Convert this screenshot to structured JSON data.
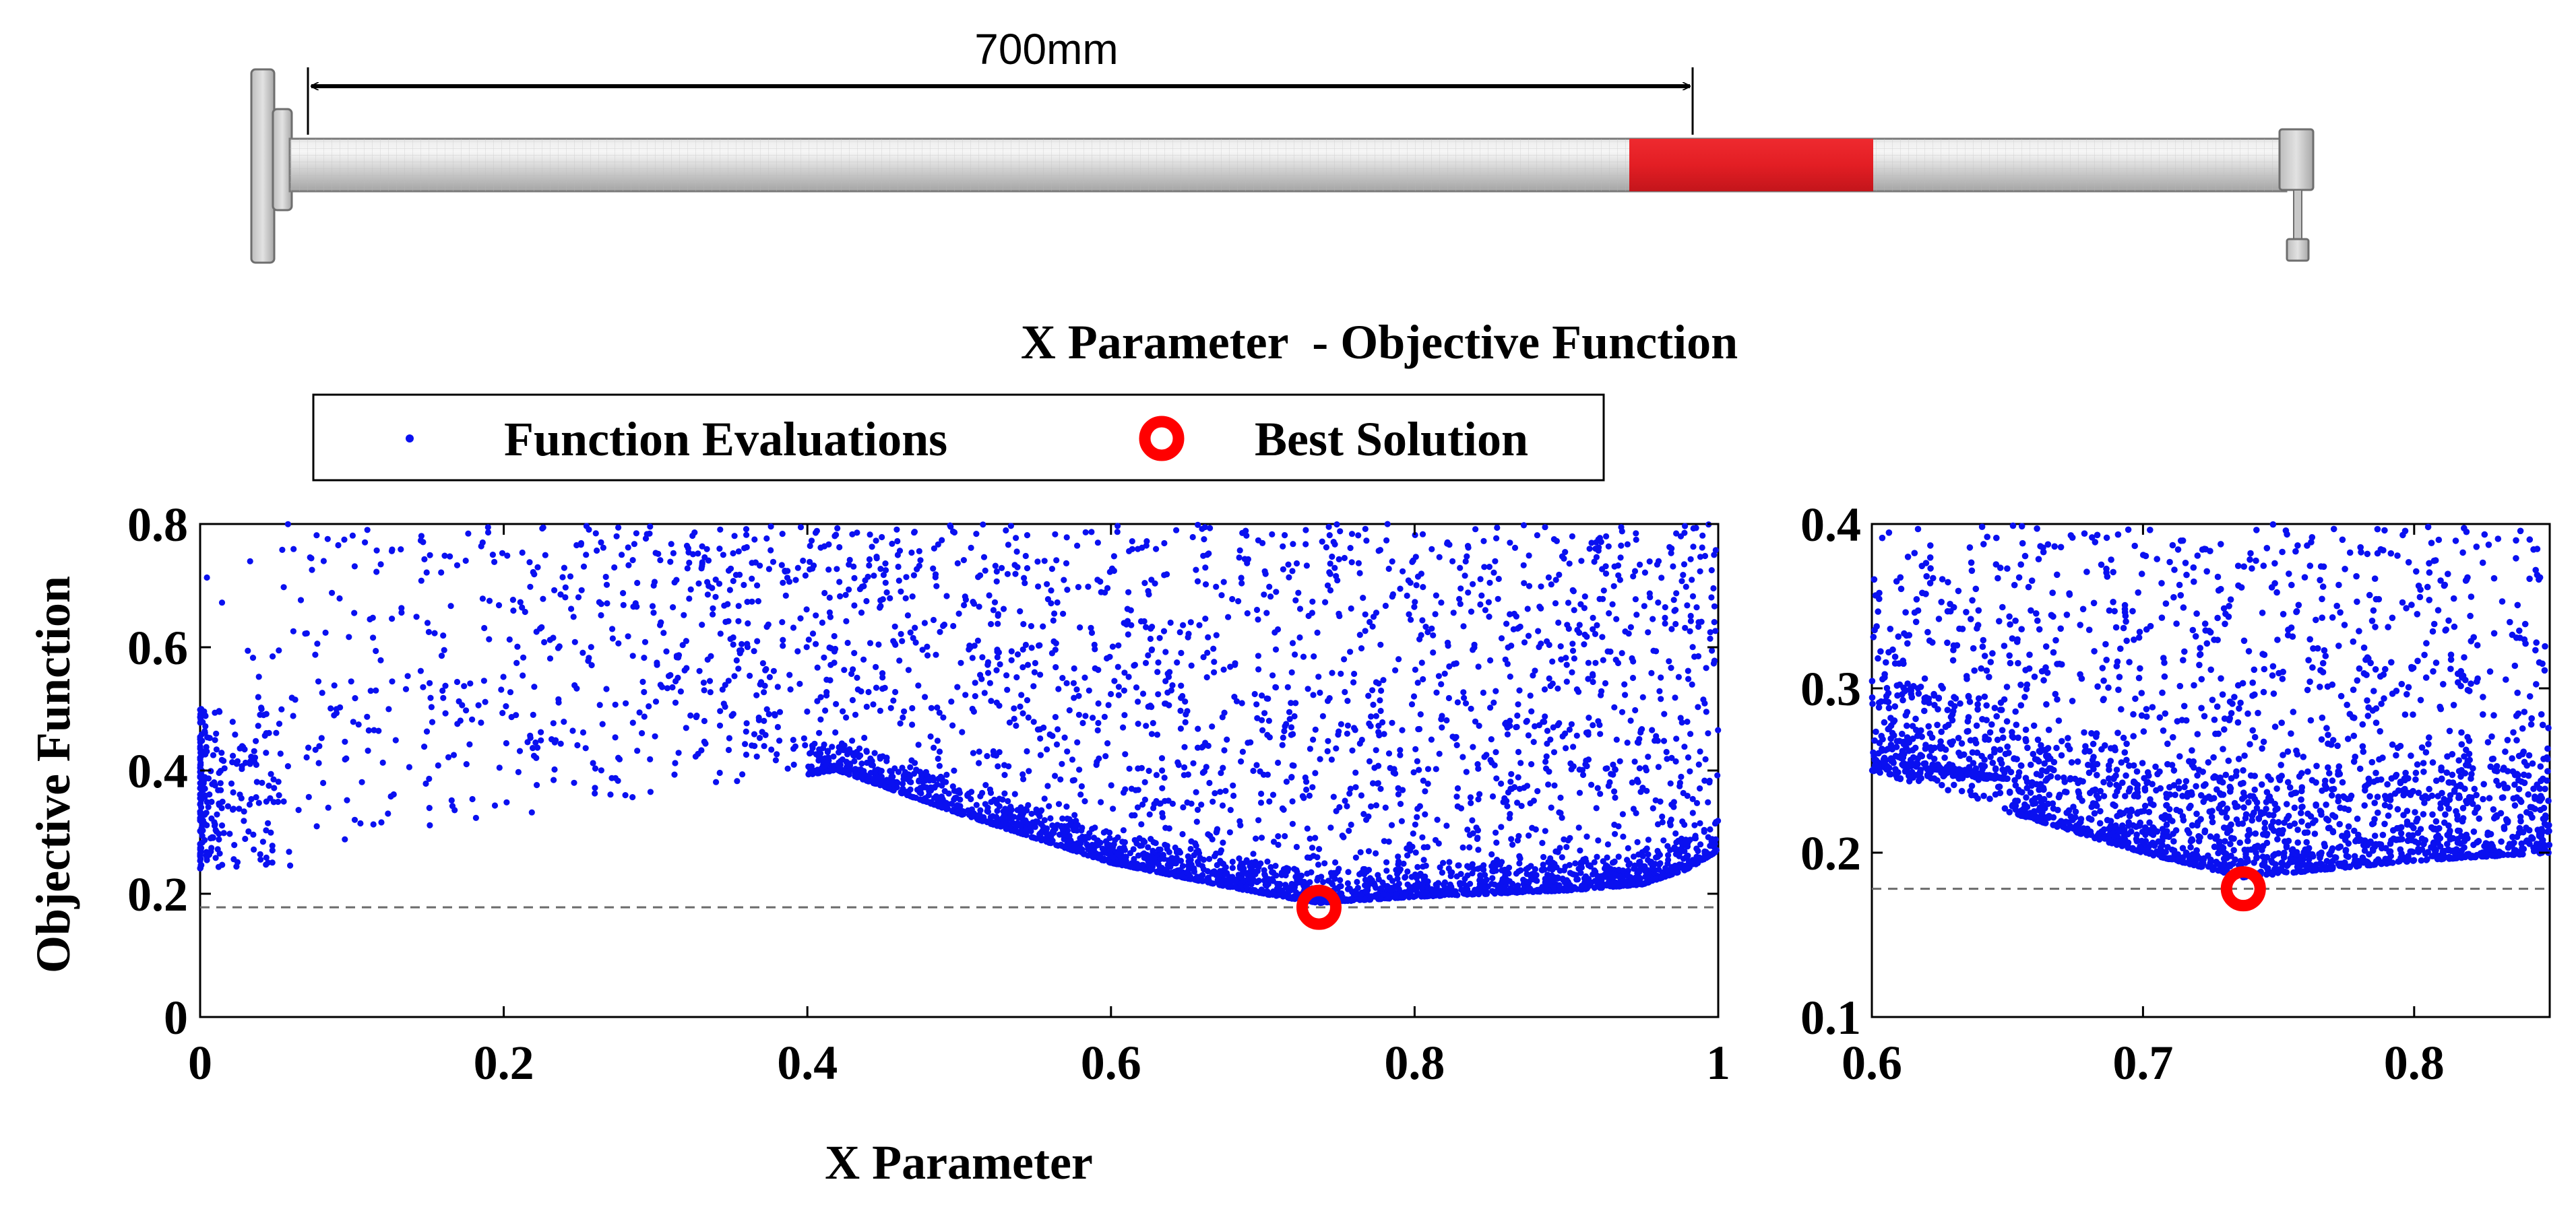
{
  "diagram": {
    "dimension_label": "700mm",
    "colors": {
      "shaft": "#d2d2d2",
      "highlight": "#e31e24",
      "outline": "#6e6e6e"
    }
  },
  "figure_title": "X Parameter  - Objective Function",
  "legend": {
    "evaluations_label": "Function Evaluations",
    "best_label": "Best Solution",
    "evaluation_color": "#0a10f0",
    "best_color": "#ff0000"
  },
  "chart_data": [
    {
      "type": "scatter",
      "name": "main",
      "title": "",
      "xlabel": "X Parameter",
      "ylabel": "Objective Function",
      "xlim": [
        0,
        1
      ],
      "ylim": [
        0,
        0.8
      ],
      "x_ticks": [
        0,
        0.2,
        0.4,
        0.6,
        0.8,
        1
      ],
      "x_tick_labels": [
        "0",
        "0.2",
        "0.4",
        "0.6",
        "0.8",
        "1"
      ],
      "y_ticks": [
        0,
        0.2,
        0.4,
        0.6,
        0.8
      ],
      "y_tick_labels": [
        "0",
        "0.2",
        "0.4",
        "0.6",
        "0.8"
      ],
      "reference_line_y": 0.178,
      "best_solution": {
        "x": 0.737,
        "y": 0.178
      },
      "front_points": [
        [
          0.0,
          0.25
        ],
        [
          0.02,
          0.26
        ],
        [
          0.42,
          0.4
        ],
        [
          0.5,
          0.33
        ],
        [
          0.6,
          0.25
        ],
        [
          0.7,
          0.2
        ],
        [
          0.737,
          0.185
        ],
        [
          0.8,
          0.195
        ],
        [
          0.9,
          0.205
        ],
        [
          0.95,
          0.215
        ],
        [
          0.98,
          0.24
        ],
        [
          1.0,
          0.27
        ]
      ],
      "series": [
        {
          "name": "Function Evaluations",
          "n_points": 4500,
          "x_range": [
            0,
            1
          ],
          "y_range": [
            0.18,
            0.8
          ]
        }
      ]
    },
    {
      "type": "scatter",
      "name": "zoom",
      "title": "",
      "xlabel": "",
      "ylabel": "",
      "xlim": [
        0.6,
        0.85
      ],
      "ylim": [
        0.1,
        0.4
      ],
      "x_ticks": [
        0.6,
        0.7,
        0.8
      ],
      "x_tick_labels": [
        "0.6",
        "0.7",
        "0.8"
      ],
      "y_ticks": [
        0.1,
        0.2,
        0.3,
        0.4
      ],
      "y_tick_labels": [
        "0.1",
        "0.2",
        "0.3",
        "0.4"
      ],
      "reference_line_y": 0.178,
      "best_solution": {
        "x": 0.737,
        "y": 0.178
      },
      "series": [
        {
          "name": "Function Evaluations",
          "n_points": 2600,
          "x_range": [
            0.6,
            0.85
          ],
          "y_range": [
            0.18,
            0.4
          ]
        }
      ]
    }
  ]
}
